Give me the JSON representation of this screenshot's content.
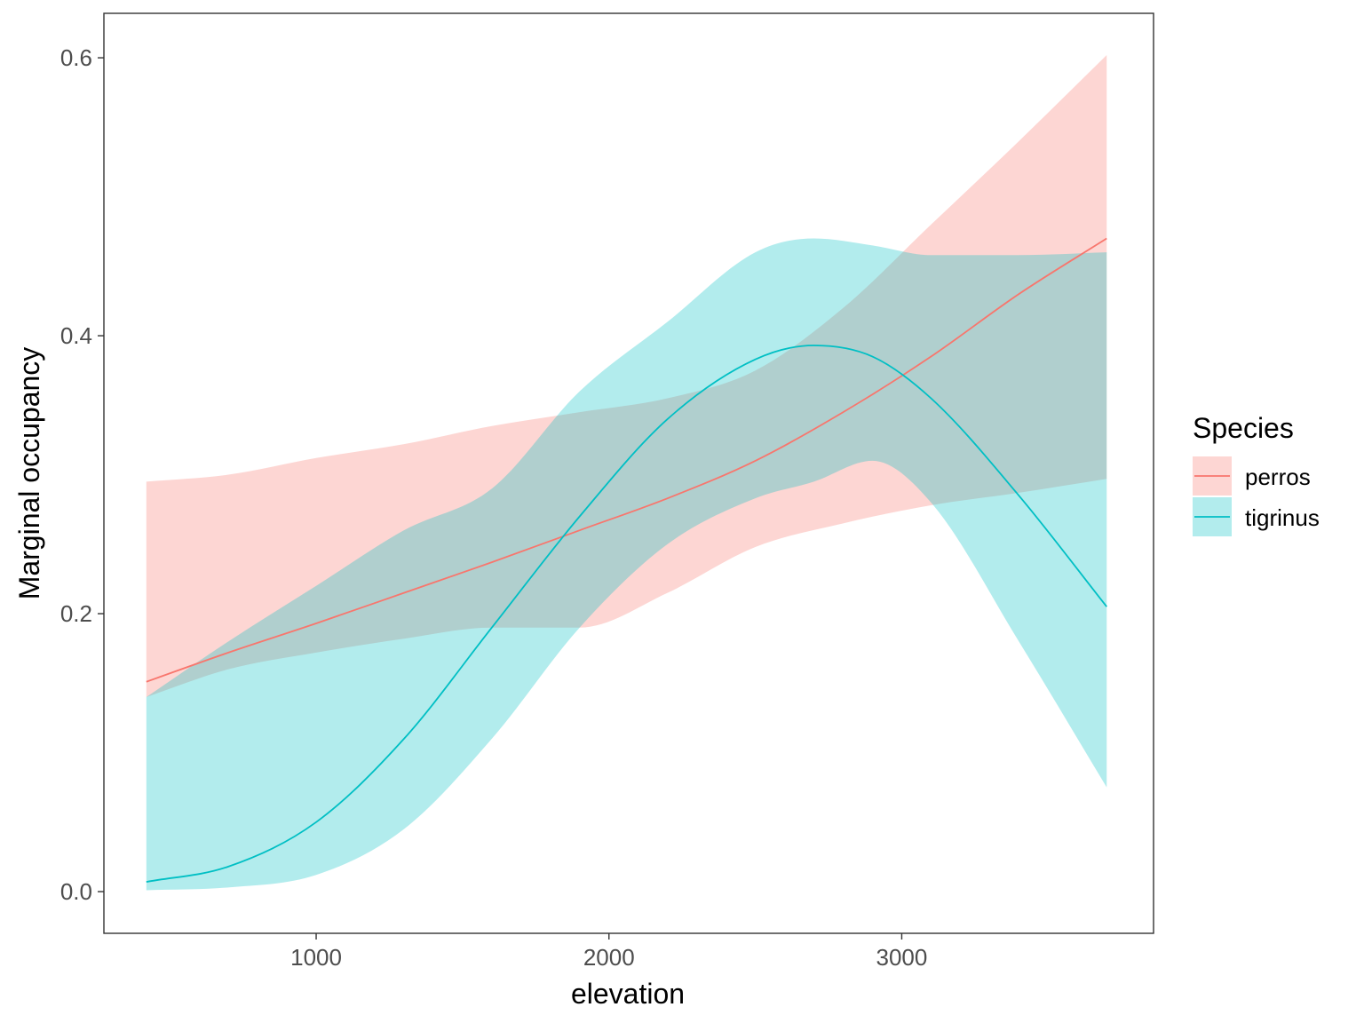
{
  "chart_data": {
    "type": "line",
    "xlabel": "elevation",
    "ylabel": "Marginal occupancy",
    "xlim": [
      275,
      3860
    ],
    "ylim": [
      -0.03,
      0.632
    ],
    "x_ticks": [
      1000,
      2000,
      3000
    ],
    "x_tick_labels": [
      "1000",
      "2000",
      "3000"
    ],
    "y_ticks": [
      0.0,
      0.2,
      0.4,
      0.6
    ],
    "y_tick_labels": [
      "0.0",
      "0.2",
      "0.4",
      "0.6"
    ],
    "legend": {
      "title": "Species",
      "position": "right"
    },
    "series": [
      {
        "name": "perros",
        "color": "#F8766D",
        "ribbon_opacity": 0.3,
        "x": [
          420,
          700,
          1000,
          1300,
          1600,
          1900,
          2200,
          2500,
          2800,
          3100,
          3400,
          3700
        ],
        "y": [
          0.151,
          0.172,
          0.193,
          0.215,
          0.237,
          0.26,
          0.283,
          0.31,
          0.345,
          0.385,
          0.43,
          0.47
        ],
        "lower": [
          0.14,
          0.16,
          0.172,
          0.182,
          0.19,
          0.19,
          0.215,
          0.248,
          0.265,
          0.278,
          0.287,
          0.297
        ],
        "upper": [
          0.295,
          0.3,
          0.312,
          0.322,
          0.335,
          0.345,
          0.355,
          0.375,
          0.42,
          0.48,
          0.54,
          0.602
        ]
      },
      {
        "name": "tigrinus",
        "color": "#00BFC4",
        "ribbon_opacity": 0.3,
        "x": [
          420,
          700,
          1000,
          1300,
          1600,
          1900,
          2200,
          2500,
          2700,
          2900,
          3100,
          3400,
          3700
        ],
        "y": [
          0.007,
          0.018,
          0.05,
          0.11,
          0.19,
          0.27,
          0.34,
          0.383,
          0.393,
          0.385,
          0.355,
          0.285,
          0.205
        ],
        "lower": [
          0.001,
          0.003,
          0.012,
          0.045,
          0.11,
          0.19,
          0.25,
          0.283,
          0.295,
          0.31,
          0.28,
          0.18,
          0.075
        ],
        "upper": [
          0.14,
          0.18,
          0.22,
          0.26,
          0.29,
          0.36,
          0.41,
          0.46,
          0.47,
          0.465,
          0.458,
          0.458,
          0.46
        ]
      }
    ]
  }
}
